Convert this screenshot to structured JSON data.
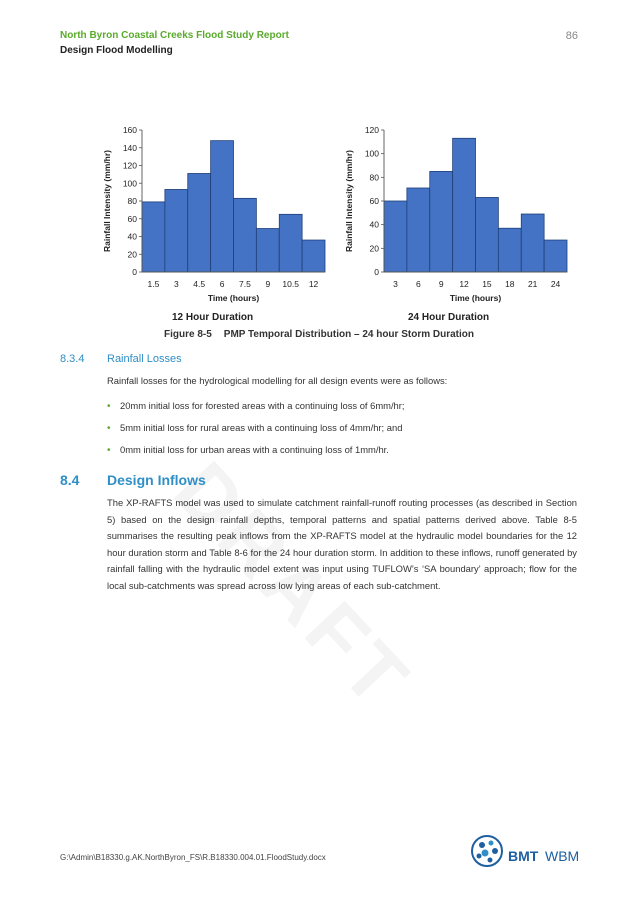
{
  "header": {
    "org": "North Byron Coastal Creeks Flood Study Report",
    "section": "Design Flood Modelling",
    "page": "86"
  },
  "watermark": "DRAFT",
  "chart_data": [
    {
      "type": "bar",
      "categories": [
        "1.5",
        "3",
        "4.5",
        "6",
        "7.5",
        "9",
        "10.5",
        "12"
      ],
      "values": [
        79,
        93,
        111,
        148,
        83,
        49,
        65,
        36
      ],
      "xlabel": "Time (hours)",
      "ylabel": "Rainfall Intensity (mm/hr)",
      "yticks": [
        0,
        20,
        40,
        60,
        80,
        100,
        120,
        140,
        160
      ],
      "ylim": [
        0,
        160
      ],
      "duration_label": "12 Hour Duration",
      "bar_color": "#4472c4"
    },
    {
      "type": "bar",
      "categories": [
        "3",
        "6",
        "9",
        "12",
        "15",
        "18",
        "21",
        "24"
      ],
      "values": [
        60,
        71,
        85,
        113,
        63,
        37,
        49,
        27
      ],
      "xlabel": "Time (hours)",
      "ylabel": "Rainfall Intensity (mm/hr)",
      "yticks": [
        0,
        20,
        40,
        60,
        80,
        100,
        120
      ],
      "ylim": [
        0,
        120
      ],
      "duration_label": "24 Hour Duration",
      "bar_color": "#4472c4"
    }
  ],
  "figure": {
    "number": "Figure 8-5",
    "title": "PMP Temporal Distribution – 24 hour Storm Duration"
  },
  "losses": {
    "number": "8.3.4",
    "title": "Rainfall Losses",
    "intro": "Rainfall losses for the hydrological modelling for all design events were as follows:",
    "bullets": [
      "20mm initial loss for forested areas with a continuing loss of 6mm/hr;",
      "5mm initial loss for rural areas with a continuing loss of 4mm/hr; and",
      "0mm initial loss for urban areas with a continuing loss of 1mm/hr."
    ]
  },
  "inflows": {
    "number": "8.4",
    "title": "Design Inflows",
    "paragraph": "The XP-RAFTS model was used to simulate catchment rainfall-runoff routing processes (as described in Section 5) based on the design rainfall depths, temporal patterns and spatial patterns derived above. Table 8-5 summarises the resulting peak inflows from the XP-RAFTS model at the hydraulic model boundaries for the 12 hour duration storm and Table 8-6 for the 24 hour duration storm. In addition to these inflows, runoff generated by rainfall falling with the hydraulic model extent was input using TUFLOW’s ‘SA boundary’ approach; flow for the local sub-catchments was spread across low lying areas of each sub-catchment."
  },
  "footer": {
    "path": "G:\\Admin\\B18330.g.AK.NorthByron_FS\\R.B18330.004.01.FloodStudy.docx",
    "logo_bmt": "BMT",
    "logo_wbm": "WBM"
  }
}
